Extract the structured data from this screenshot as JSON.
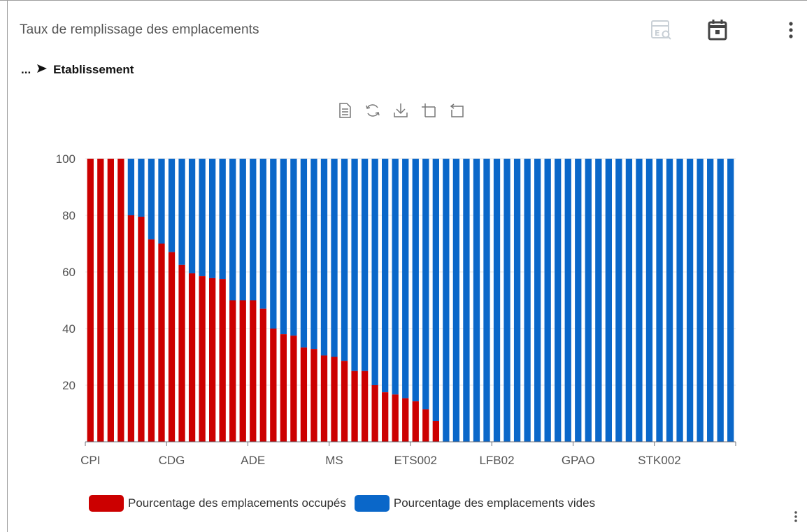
{
  "widget": {
    "title": "Taux de remplissage des emplacements",
    "icons": [
      "table-search-icon",
      "calendar-icon",
      "more-vert-icon"
    ],
    "breadcrumb": {
      "ellipsis": "...",
      "current": "Etablissement"
    }
  },
  "toolbox": [
    "data-view-icon",
    "restore-icon",
    "save-image-icon",
    "zoom-icon",
    "zoom-reset-icon"
  ],
  "colors": {
    "occupied": "#cc0000",
    "empty": "#0a67c9",
    "axis": "#6e7079",
    "grid": "#e6e6e6"
  },
  "chart_data": {
    "type": "bar",
    "stacked": true,
    "categories_shown": [
      "CPI",
      "CDG",
      "ADE",
      "MS",
      "ETS002",
      "LFB02",
      "GPAO",
      "STK002"
    ],
    "label_every": 8,
    "y_ticks": [
      20,
      40,
      60,
      80,
      100
    ],
    "ylim": [
      0,
      100
    ],
    "series": [
      {
        "name": "Pourcentage des emplacements occupés",
        "color": "#cc0000",
        "values": [
          100,
          100,
          100,
          100,
          80,
          79.5,
          71.5,
          70,
          67,
          62.5,
          59.5,
          58.5,
          57.8,
          57.5,
          50,
          50,
          50,
          47,
          40,
          38,
          37.5,
          33.3,
          32.8,
          30.5,
          30,
          28.6,
          25,
          25,
          20,
          17.5,
          16.7,
          15.4,
          14.3,
          11.5,
          7.4,
          0,
          0,
          0,
          0,
          0,
          0,
          0,
          0,
          0,
          0,
          0,
          0,
          0,
          0,
          0,
          0,
          0,
          0,
          0,
          0,
          0,
          0,
          0,
          0,
          0,
          0,
          0,
          0,
          0
        ]
      },
      {
        "name": "Pourcentage des emplacements vides",
        "color": "#0a67c9"
      }
    ]
  },
  "legend": [
    {
      "label": "Pourcentage des emplacements occupés",
      "color": "#cc0000"
    },
    {
      "label": "Pourcentage des emplacements vides",
      "color": "#0a67c9"
    }
  ]
}
